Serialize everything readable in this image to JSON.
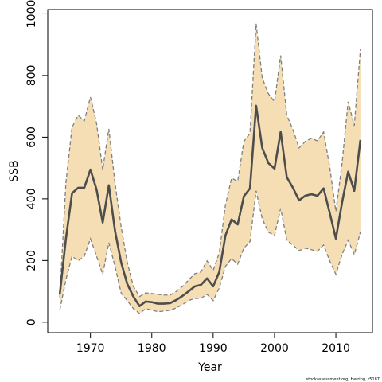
{
  "chart_data": {
    "type": "line_band",
    "xlabel": "Year",
    "ylabel": "SSB",
    "footnote": "stockassessment.org, Herring, r5187",
    "x": [
      1965,
      1966,
      1967,
      1968,
      1969,
      1970,
      1971,
      1972,
      1973,
      1974,
      1975,
      1976,
      1977,
      1978,
      1979,
      1980,
      1981,
      1982,
      1983,
      1984,
      1985,
      1986,
      1987,
      1988,
      1989,
      1990,
      1991,
      1992,
      1993,
      1994,
      1995,
      1996,
      1997,
      1998,
      1999,
      2000,
      2001,
      2002,
      2003,
      2004,
      2005,
      2006,
      2007,
      2008,
      2009,
      2010,
      2011,
      2012,
      2013,
      2014
    ],
    "values": [
      90,
      270,
      418,
      436,
      436,
      495,
      430,
      323,
      444,
      297,
      194,
      124,
      83,
      52,
      67,
      65,
      60,
      60,
      62,
      72,
      85,
      100,
      116,
      121,
      142,
      116,
      163,
      281,
      333,
      317,
      408,
      434,
      702,
      565,
      516,
      498,
      617,
      470,
      436,
      395,
      410,
      415,
      410,
      434,
      354,
      271,
      387,
      488,
      426,
      591
    ],
    "ci_upper": [
      80,
      452,
      632,
      671,
      653,
      730,
      645,
      495,
      627,
      452,
      310,
      194,
      116,
      83,
      95,
      93,
      90,
      88,
      88,
      100,
      116,
      137,
      157,
      163,
      199,
      168,
      225,
      380,
      467,
      457,
      586,
      612,
      968,
      792,
      741,
      715,
      865,
      671,
      625,
      565,
      586,
      596,
      588,
      617,
      503,
      359,
      514,
      715,
      637,
      885
    ],
    "ci_lower": [
      39,
      137,
      214,
      199,
      214,
      271,
      214,
      155,
      258,
      181,
      95,
      70,
      44,
      28,
      44,
      39,
      34,
      36,
      39,
      46,
      57,
      70,
      77,
      77,
      90,
      70,
      111,
      181,
      206,
      188,
      240,
      261,
      426,
      335,
      292,
      281,
      369,
      266,
      250,
      232,
      240,
      235,
      230,
      250,
      199,
      155,
      219,
      266,
      219,
      292
    ],
    "line_color": "#4d4d4d",
    "band_color": "#f5deb3",
    "band_edge_color": "#808080",
    "xlim": [
      1963.04,
      2015.96
    ],
    "xticks": [
      1970,
      1980,
      1990,
      2000,
      2010
    ],
    "ylim": [
      -34,
      1014
    ],
    "yticks": [
      0,
      200,
      400,
      600,
      800,
      1000
    ]
  }
}
